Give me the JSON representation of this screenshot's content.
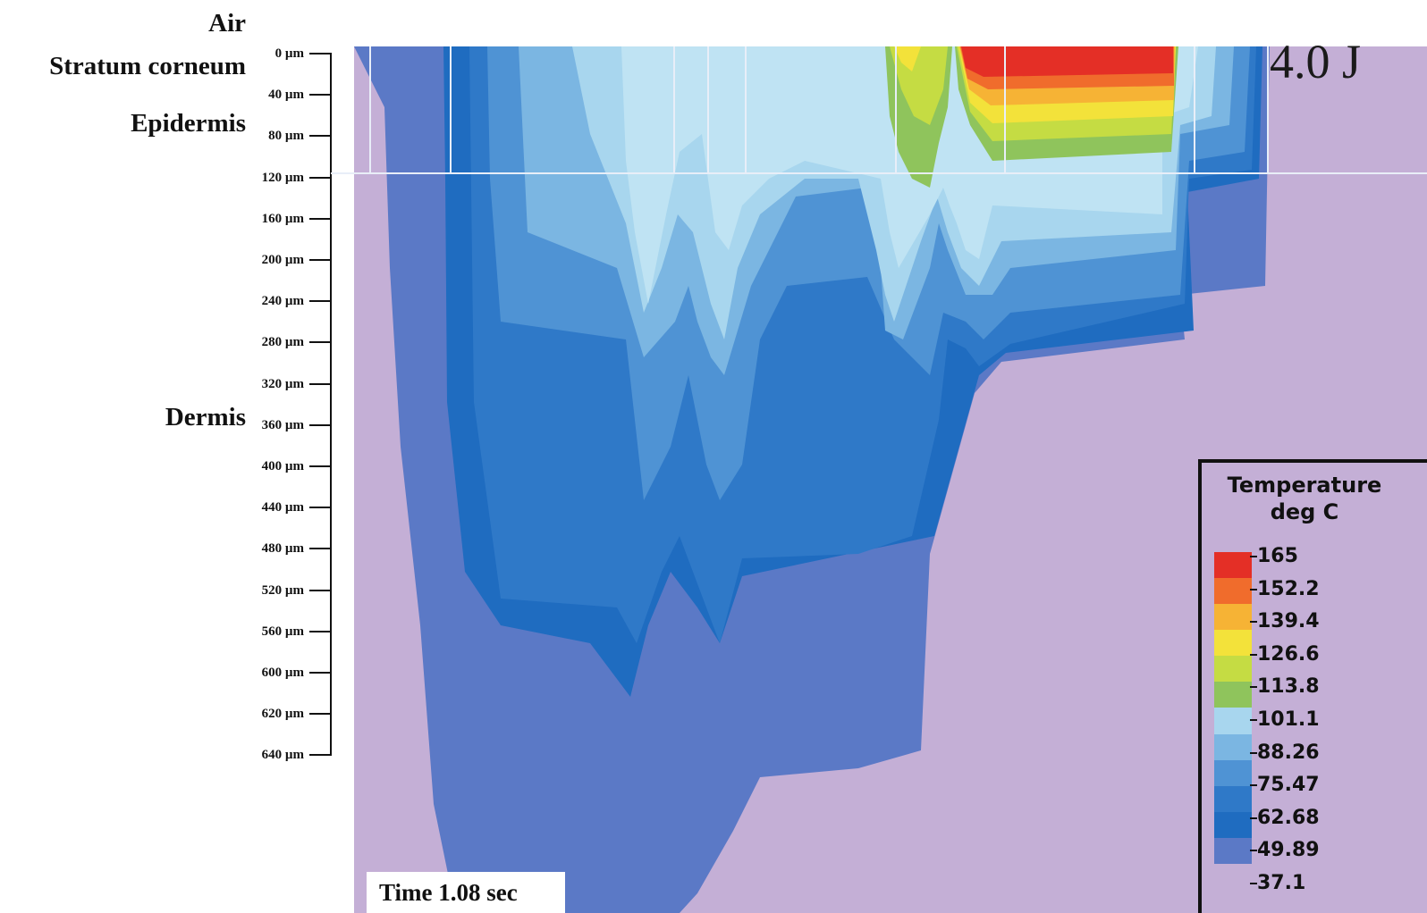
{
  "layer_labels": [
    {
      "id": "air",
      "label": "Air"
    },
    {
      "id": "stratum-corneum",
      "label": "Stratum corneum"
    },
    {
      "id": "epidermis",
      "label": "Epidermis"
    },
    {
      "id": "dermis",
      "label": "Dermis"
    }
  ],
  "depth_ticks": [
    "0 µm",
    "40 µm",
    "80 µm",
    "120 µm",
    "160 µm",
    "200 µm",
    "240 µm",
    "280 µm",
    "320 µm",
    "360 µm",
    "400 µm",
    "440 µm",
    "480 µm",
    "520 µm",
    "560 µm",
    "600 µm",
    "620 µm",
    "640 µm"
  ],
  "energy_label": "4.0 J",
  "time_label": "Time 1.08 sec",
  "legend": {
    "title_line1": "Temperature",
    "title_line2": "deg C",
    "values": [
      "165",
      "152.2",
      "139.4",
      "126.6",
      "113.8",
      "101.1",
      "88.26",
      "75.47",
      "62.68",
      "49.89",
      "37.1"
    ]
  },
  "colors": {
    "t37": "#c4afd6",
    "t50": "#5b79c6",
    "t62": "#1f6cc0",
    "t68": "#2f79c8",
    "t75": "#4f93d4",
    "t82": "#7bb6e2",
    "t88": "#a8d6ee",
    "t101": "#8fc45c",
    "t114": "#c5dc43",
    "t126": "#f3e23a",
    "t139": "#f6b335",
    "t152": "#f06c2c",
    "t165": "#e42f26"
  }
}
